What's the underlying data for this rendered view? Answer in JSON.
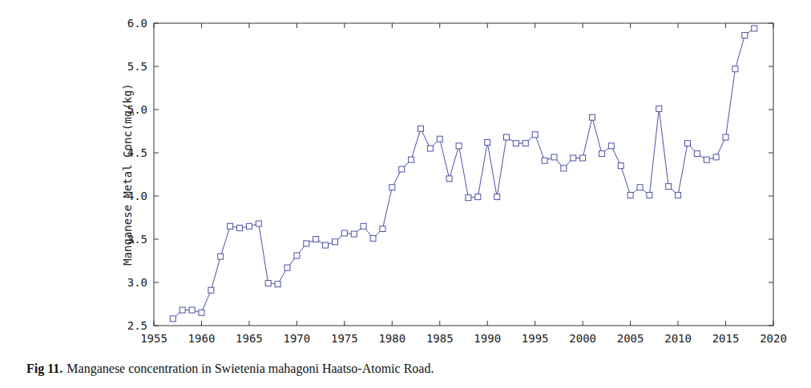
{
  "chart_data": {
    "type": "line",
    "y_label": "Manganese Metal Conc(mg/kg)",
    "x": [
      1957,
      1958,
      1959,
      1960,
      1961,
      1962,
      1963,
      1964,
      1965,
      1966,
      1967,
      1968,
      1969,
      1970,
      1971,
      1972,
      1973,
      1974,
      1975,
      1976,
      1977,
      1978,
      1979,
      1980,
      1981,
      1982,
      1983,
      1984,
      1985,
      1986,
      1987,
      1988,
      1989,
      1990,
      1991,
      1992,
      1993,
      1994,
      1995,
      1996,
      1997,
      1998,
      1999,
      2000,
      2001,
      2002,
      2003,
      2004,
      2005,
      2006,
      2007,
      2008,
      2009,
      2010,
      2011,
      2012,
      2013,
      2014,
      2015,
      2016,
      2017,
      2018
    ],
    "series": [
      {
        "color": "#4b50a8",
        "marker": "square",
        "values": [
          2.58,
          2.68,
          2.68,
          2.65,
          2.91,
          3.3,
          3.65,
          3.63,
          3.65,
          3.68,
          2.99,
          2.98,
          3.17,
          3.31,
          3.45,
          3.5,
          3.43,
          3.47,
          3.57,
          3.56,
          3.65,
          3.51,
          3.62,
          4.1,
          4.31,
          4.42,
          4.78,
          4.55,
          4.66,
          4.2,
          4.58,
          3.98,
          3.99,
          4.62,
          3.99,
          4.68,
          4.61,
          4.61,
          4.71,
          4.41,
          4.45,
          4.32,
          4.44,
          4.44,
          4.91,
          4.49,
          4.58,
          4.35,
          4.01,
          4.1,
          4.01,
          5.01,
          4.11,
          4.01,
          4.61,
          4.49,
          4.42,
          4.45,
          4.68,
          5.47,
          5.86,
          5.94
        ]
      }
    ],
    "xlim": [
      1955,
      2020
    ],
    "xticks": [
      1955,
      1960,
      1965,
      1970,
      1975,
      1980,
      1985,
      1990,
      1995,
      2000,
      2005,
      2010,
      2015,
      2020
    ],
    "ylim": [
      2.5,
      6.0
    ],
    "yticks": [
      2.5,
      {
        "value": 3,
        "label": "3.0"
      },
      3.5,
      {
        "value": 4,
        "label": "4.0"
      },
      4.5,
      {
        "value": 5,
        "label": "5.0"
      },
      5.5,
      {
        "value": 6,
        "label": "6.0"
      }
    ],
    "grid": false
  },
  "figure": {
    "label": "Fig 11.",
    "caption": "Manganese concentration in Swietenia mahagoni Haatso-Atomic Road."
  }
}
